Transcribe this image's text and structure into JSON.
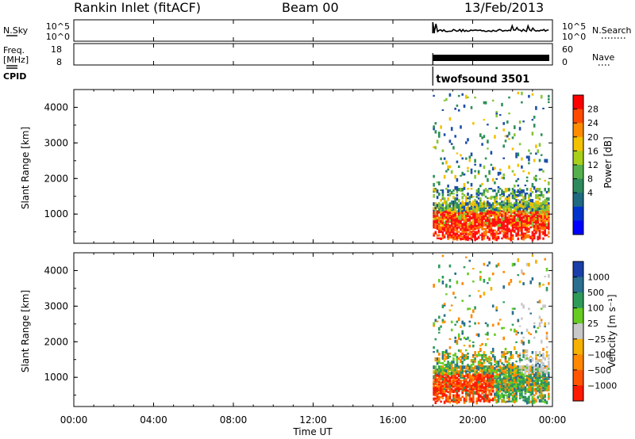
{
  "header": {
    "station": "Rankin Inlet (fitACF)",
    "beam": "Beam 00",
    "date": "13/Feb/2013"
  },
  "top_panels": {
    "nsky_label": "N.Sky",
    "nsky_ticks": [
      "10^5",
      "10^0"
    ],
    "nsearch_label": "N.Search",
    "nsearch_ticks": [
      "10^5",
      "10^0"
    ],
    "freq_label": "Freq.",
    "freq_unit": "[MHz]",
    "freq_ticks": [
      "18",
      "8"
    ],
    "nave_label": "Nave",
    "nave_ticks": [
      "60",
      "0"
    ],
    "cpid_label": "CPID",
    "cpid_value": "twofsound 3501"
  },
  "chart_data": [
    {
      "type": "heatmap",
      "name": "power",
      "ylabel": "Slant Range [km]",
      "ylim": [
        180,
        4500
      ],
      "yticks": [
        1000,
        2000,
        3000,
        4000
      ],
      "xlim": [
        0,
        24
      ],
      "colorbar": {
        "label": "Power [dB]",
        "ticks": [
          "28",
          "24",
          "20",
          "16",
          "12",
          "8",
          "4"
        ],
        "colors": [
          "#ff0000",
          "#ff4a00",
          "#ff8c00",
          "#f2c200",
          "#a8cf1a",
          "#55b04c",
          "#2e8a5c",
          "#1f6a80",
          "#0033cc",
          "#0000ff"
        ]
      },
      "data_start_hour": 18.0,
      "colors": {
        "high": "#ff1010",
        "mid_high": "#ff7a00",
        "mid": "#f5c000",
        "mid_low": "#88c53a",
        "low": "#2f8f5a",
        "very_low": "#1c4fa8"
      }
    },
    {
      "type": "heatmap",
      "name": "velocity",
      "ylabel": "Slant Range [km]",
      "xlabel": "Time UT",
      "ylim": [
        180,
        4500
      ],
      "yticks": [
        1000,
        2000,
        3000,
        4000
      ],
      "xlim": [
        0,
        24
      ],
      "xticks": [
        "00:00",
        "04:00",
        "08:00",
        "12:00",
        "16:00",
        "20:00",
        "00:00"
      ],
      "colorbar": {
        "label": "Velocity [m s⁻¹]",
        "ticks": [
          "1000",
          "500",
          "100",
          "25",
          "−25",
          "−100",
          "−500",
          "−1000"
        ],
        "colors": [
          "#1a3fa8",
          "#2a6f8f",
          "#2e9a5a",
          "#66cc22",
          "#c8c8c8",
          "#f5b000",
          "#ff8800",
          "#ff5500",
          "#ff1a00"
        ]
      },
      "data_start_hour": 18.0
    }
  ]
}
